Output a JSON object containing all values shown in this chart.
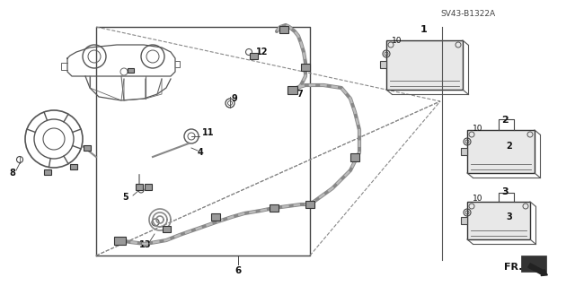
{
  "fig_width": 6.4,
  "fig_height": 3.19,
  "bg_color": "#ffffff",
  "diagram_ref": "SV43-B1322A",
  "lc": "#333333",
  "tc": "#111111"
}
